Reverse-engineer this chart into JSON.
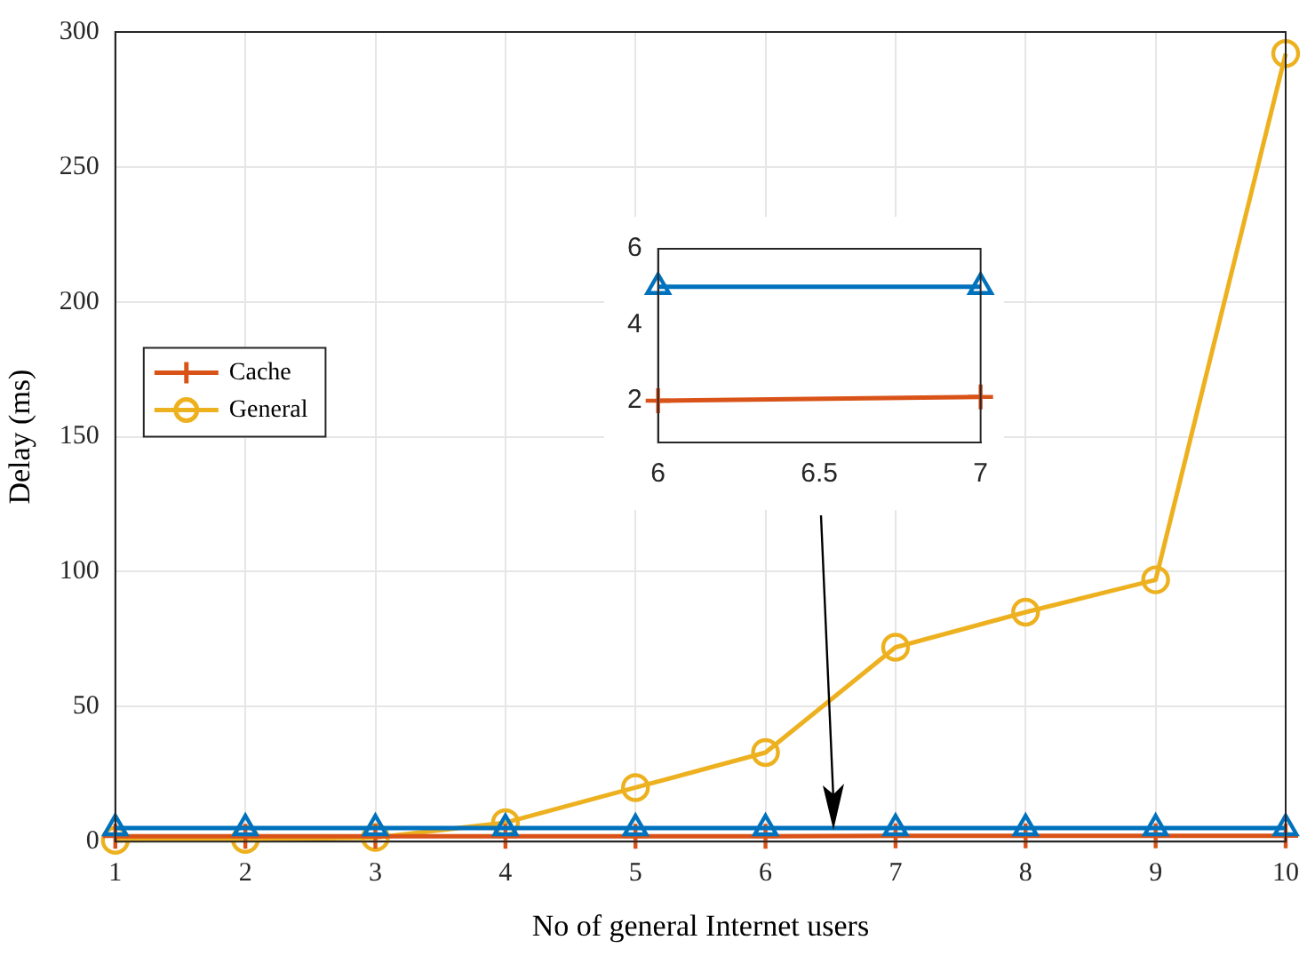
{
  "chart_data": [
    {
      "type": "line",
      "xlabel": "No of general Internet users",
      "ylabel": "Delay (ms)",
      "x": [
        1,
        2,
        3,
        4,
        5,
        6,
        7,
        8,
        9,
        10
      ],
      "xlim": [
        1,
        10
      ],
      "xticks": [
        1,
        2,
        3,
        4,
        5,
        6,
        7,
        8,
        9,
        10
      ],
      "ylim": [
        0,
        300
      ],
      "yticks": [
        0,
        50,
        100,
        150,
        200,
        250,
        300
      ],
      "grid": true,
      "legend": "left",
      "series": [
        {
          "color": "#0072bd",
          "marker": "triangle",
          "values": [
            5,
            5,
            5,
            5,
            5,
            5,
            5,
            5,
            5,
            5
          ]
        },
        {
          "name": "Cache",
          "color": "#d95319",
          "marker": "cross",
          "values": [
            2,
            2,
            2,
            2,
            2,
            2,
            2.1,
            2.1,
            2.1,
            2.1
          ]
        },
        {
          "name": "General",
          "color": "#edb120",
          "marker": "circle",
          "values": [
            0.5,
            0.8,
            1.5,
            7,
            20,
            33,
            72,
            85,
            97,
            292
          ]
        }
      ]
    },
    {
      "type": "line",
      "x": [
        6,
        7
      ],
      "xlim": [
        6,
        7
      ],
      "xticks": [
        6,
        6.5,
        7
      ],
      "ylim": [
        0.9,
        6
      ],
      "yticks": [
        2,
        4,
        6
      ],
      "grid": false,
      "series": [
        {
          "color": "#0072bd",
          "marker": "triangle",
          "values": [
            5,
            5
          ]
        },
        {
          "color": "#d95319",
          "marker": "cross",
          "values": [
            2,
            2.1
          ]
        }
      ]
    }
  ]
}
